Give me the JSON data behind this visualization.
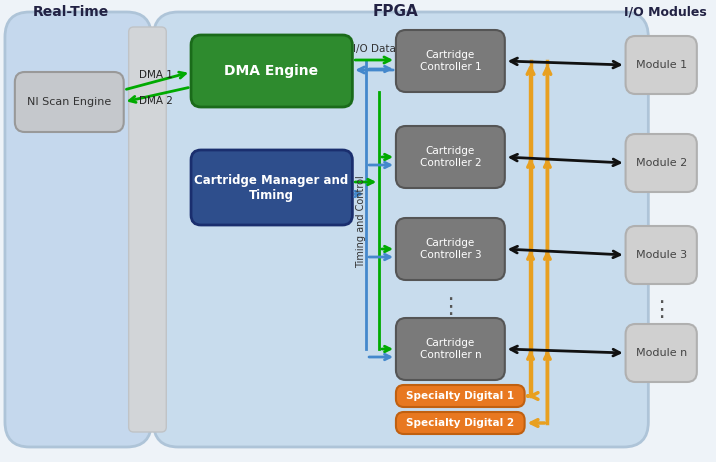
{
  "title_fpga": "FPGA",
  "title_realtime": "Real-Time",
  "title_io": "I/O Modules",
  "rt_bg": "#c5d8ed",
  "fpga_bg": "#c8dced",
  "io_bg": "#dce8f0",
  "gray_strip": "#d0d4d8",
  "dma_engine_color": "#2e8b2e",
  "cartridge_manager_color": "#2e4e8c",
  "cartridge_controller_color": "#808080",
  "specialty_digital_color": "#e87820",
  "module_color": "#d0d0d0",
  "ni_scan_color": "#c0c0c8",
  "arrow_green": "#00aa00",
  "arrow_blue": "#4488cc",
  "arrow_black": "#111111",
  "arrow_orange": "#e8a020",
  "label_dma1": "DMA 1",
  "label_dma2": "DMA 2",
  "label_io_data": "I/O Data",
  "label_timing": "Timing and Control",
  "label_dma_engine": "DMA Engine",
  "label_cartridge_manager": "Cartridge Manager and\nTiming",
  "label_ni_scan": "NI Scan Engine",
  "controllers": [
    "Cartridge\nController 1",
    "Cartridge\nController 2",
    "Cartridge\nController 3",
    "Cartridge\nController n"
  ],
  "modules": [
    "Module 1",
    "Module 2",
    "Module 3",
    "Module n"
  ],
  "specialty": [
    "Specialty Digital 1",
    "Specialty Digital 2"
  ]
}
